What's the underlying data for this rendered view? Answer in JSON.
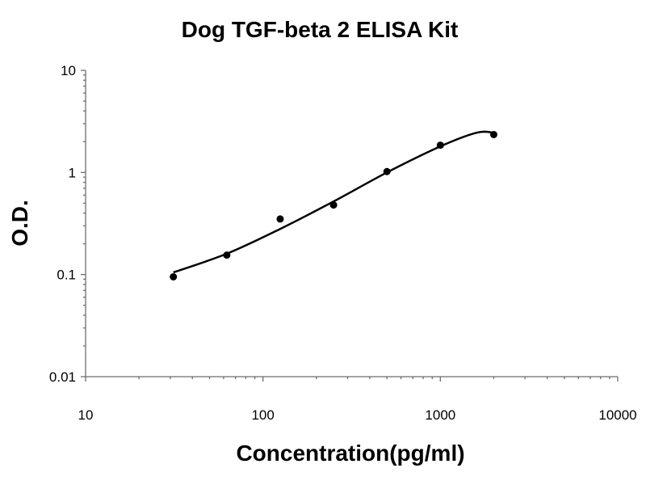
{
  "chart_data": {
    "type": "scatter",
    "title": "Dog TGF-beta 2 ELISA Kit",
    "xlabel": "Concentration(pg/ml)",
    "ylabel": "O.D.",
    "x_scale": "log",
    "y_scale": "log",
    "xlim": [
      10,
      10000
    ],
    "ylim": [
      0.01,
      10
    ],
    "x_ticks": [
      "10",
      "100",
      "1000",
      "10000"
    ],
    "y_ticks": [
      "0.01",
      "0.1",
      "1",
      "10"
    ],
    "grid": false,
    "series": [
      {
        "points": [
          {
            "x": 31.25,
            "y": 0.095
          },
          {
            "x": 62.5,
            "y": 0.155
          },
          {
            "x": 125,
            "y": 0.35
          },
          {
            "x": 250,
            "y": 0.48
          },
          {
            "x": 500,
            "y": 1.02
          },
          {
            "x": 1000,
            "y": 1.85
          },
          {
            "x": 2000,
            "y": 2.35
          }
        ]
      }
    ],
    "fit_curve": [
      {
        "x": 31.25,
        "y": 0.105
      },
      {
        "x": 62.5,
        "y": 0.16
      },
      {
        "x": 125,
        "y": 0.28
      },
      {
        "x": 250,
        "y": 0.52
      },
      {
        "x": 500,
        "y": 1.0
      },
      {
        "x": 1000,
        "y": 1.8
      },
      {
        "x": 1600,
        "y": 2.45
      },
      {
        "x": 2000,
        "y": 2.45
      }
    ],
    "colors": {
      "marks": "#000000",
      "axis": "#6e6e6e"
    }
  }
}
